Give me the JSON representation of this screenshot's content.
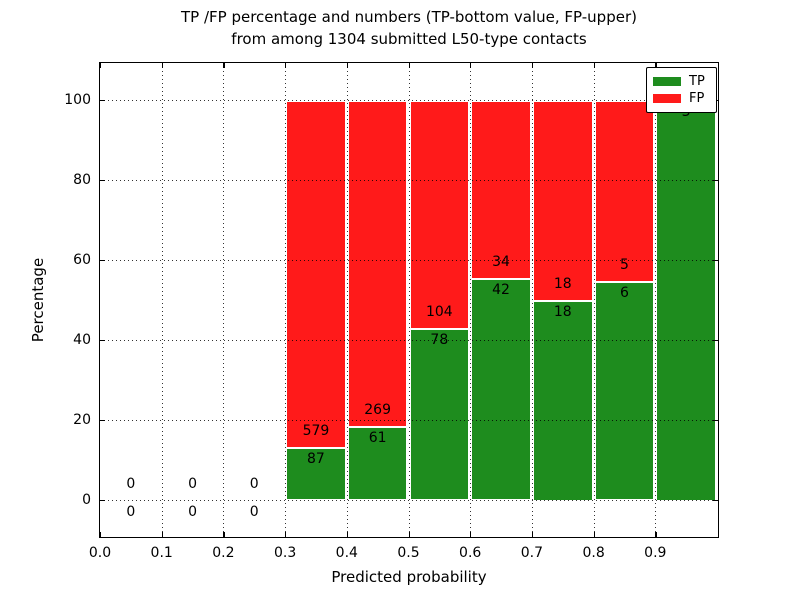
{
  "figure": {
    "title_line1": "TP /FP percentage and numbers (TP-bottom value, FP-upper)",
    "title_line2": "from among 1304 submitted L50-type contacts",
    "xlabel": "Predicted probability",
    "ylabel": "Percentage"
  },
  "legend": {
    "position": "upper-right",
    "items": [
      {
        "label": "TP",
        "color": "#1e8c1e"
      },
      {
        "label": "FP",
        "color": "#ff1a1a"
      }
    ]
  },
  "chart_data": {
    "type": "bar",
    "stacked": true,
    "normalized_to_percent": true,
    "title": "TP /FP percentage and numbers (TP-bottom value, FP-upper) from among 1304 submitted L50-type contacts",
    "xlabel": "Predicted probability",
    "ylabel": "Percentage",
    "total_contacts": 1304,
    "bin_width": 0.1,
    "bin_starts": [
      0.0,
      0.1,
      0.2,
      0.3,
      0.4,
      0.5,
      0.6,
      0.7,
      0.8,
      0.9
    ],
    "series": [
      {
        "name": "TP",
        "color": "#1e8c1e",
        "values": [
          0,
          0,
          0,
          87,
          61,
          78,
          42,
          18,
          6,
          3
        ]
      },
      {
        "name": "FP",
        "color": "#ff1a1a",
        "values": [
          0,
          0,
          0,
          579,
          269,
          104,
          34,
          18,
          5,
          0
        ]
      }
    ],
    "tp_percent_by_bin": [
      null,
      null,
      null,
      13.06,
      18.48,
      42.86,
      55.26,
      50.0,
      54.55,
      100.0
    ],
    "xticks": [
      "0.0",
      "0.1",
      "0.2",
      "0.3",
      "0.4",
      "0.5",
      "0.6",
      "0.7",
      "0.8",
      "0.9"
    ],
    "yticks": [
      0,
      20,
      40,
      60,
      80,
      100
    ],
    "xlim": [
      0.0,
      1.0
    ],
    "ylim": [
      -9.5,
      109.5
    ],
    "grid": "dotted",
    "bar_edge_color": "#ffffff"
  }
}
